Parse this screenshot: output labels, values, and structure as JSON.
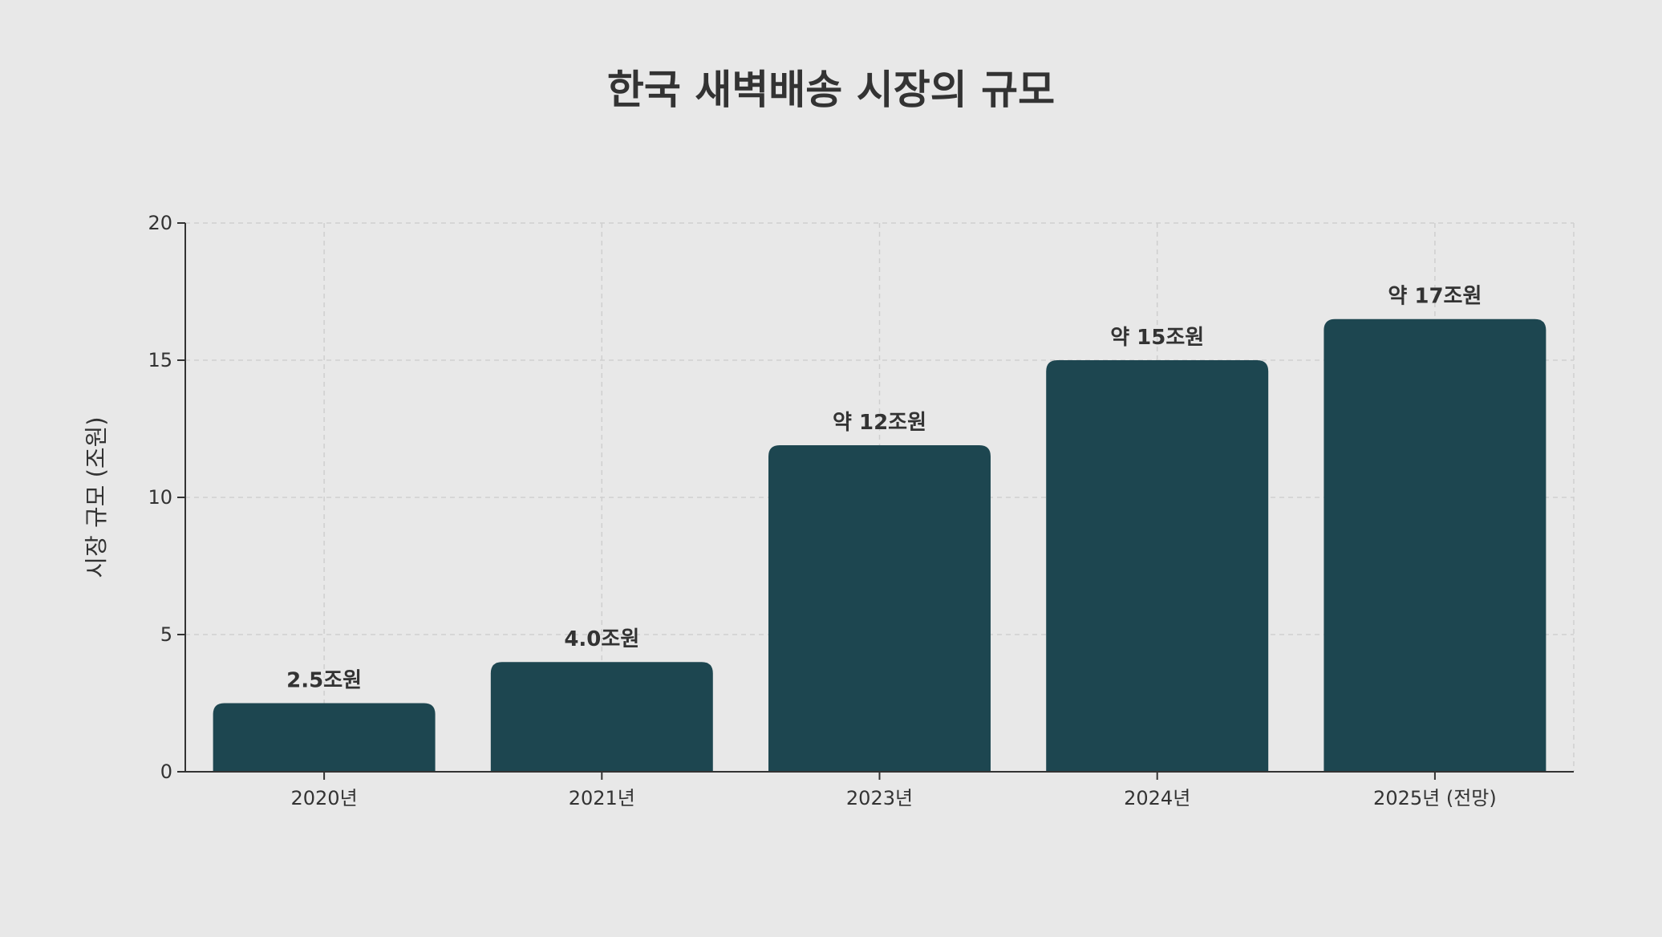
{
  "chart_data": {
    "type": "bar",
    "title": "한국 새벽배송 시장의 규모",
    "xlabel": "",
    "ylabel": "시장 규모 (조원)",
    "categories": [
      "2020년",
      "2021년",
      "2023년",
      "2024년",
      "2025년 (전망)"
    ],
    "values": [
      2.5,
      4.0,
      11.9,
      15.0,
      16.5
    ],
    "data_labels": [
      "2.5조원",
      "4.0조원",
      "약 12조원",
      "약 15조원",
      "약 17조원"
    ],
    "ylim": [
      0,
      20
    ],
    "yticks": [
      0,
      5,
      10,
      15,
      20
    ],
    "grid": true,
    "legend": "none",
    "colors": {
      "bar": "#1d4650",
      "background": "#e8e8e8",
      "text": "#333333",
      "grid": "#cfcfcf",
      "axis": "#333333"
    }
  }
}
